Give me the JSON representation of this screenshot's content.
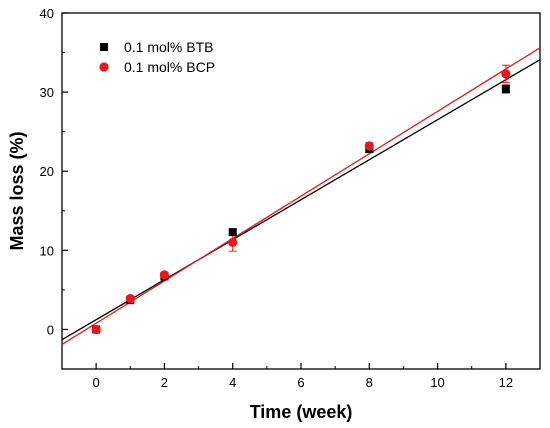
{
  "chart_data": {
    "type": "scatter",
    "xlabel": "Time (week)",
    "ylabel": "Mass loss (%)",
    "xlim": [
      -1,
      13
    ],
    "ylim": [
      -5,
      40
    ],
    "xticks": [
      0,
      2,
      4,
      6,
      8,
      10,
      12
    ],
    "yticks": [
      0,
      10,
      20,
      30,
      40
    ],
    "grid": false,
    "legend_position": "top-left",
    "series": [
      {
        "name": "0.1 mol% BTB",
        "color": "#000000",
        "marker": "square",
        "x": [
          0,
          1,
          2,
          4,
          8,
          12
        ],
        "y": [
          0.0,
          3.7,
          6.7,
          12.3,
          22.8,
          30.4
        ],
        "error": [
          0.3,
          0.3,
          0.3,
          0.4,
          0.4,
          0.5
        ],
        "fit_line": {
          "x": [
            -1,
            13
          ],
          "y": [
            -1.3,
            34.1
          ]
        }
      },
      {
        "name": "0.1 mol% BCP",
        "color": "#e8191d",
        "marker": "circle",
        "x": [
          0,
          1,
          2,
          4,
          8,
          12
        ],
        "y": [
          0.0,
          3.9,
          6.9,
          11.0,
          23.2,
          32.3
        ],
        "error": [
          0.3,
          0.3,
          0.3,
          1.1,
          0.4,
          1.1
        ],
        "fit_line": {
          "x": [
            -1,
            13
          ],
          "y": [
            -1.9,
            35.6
          ]
        }
      }
    ]
  }
}
